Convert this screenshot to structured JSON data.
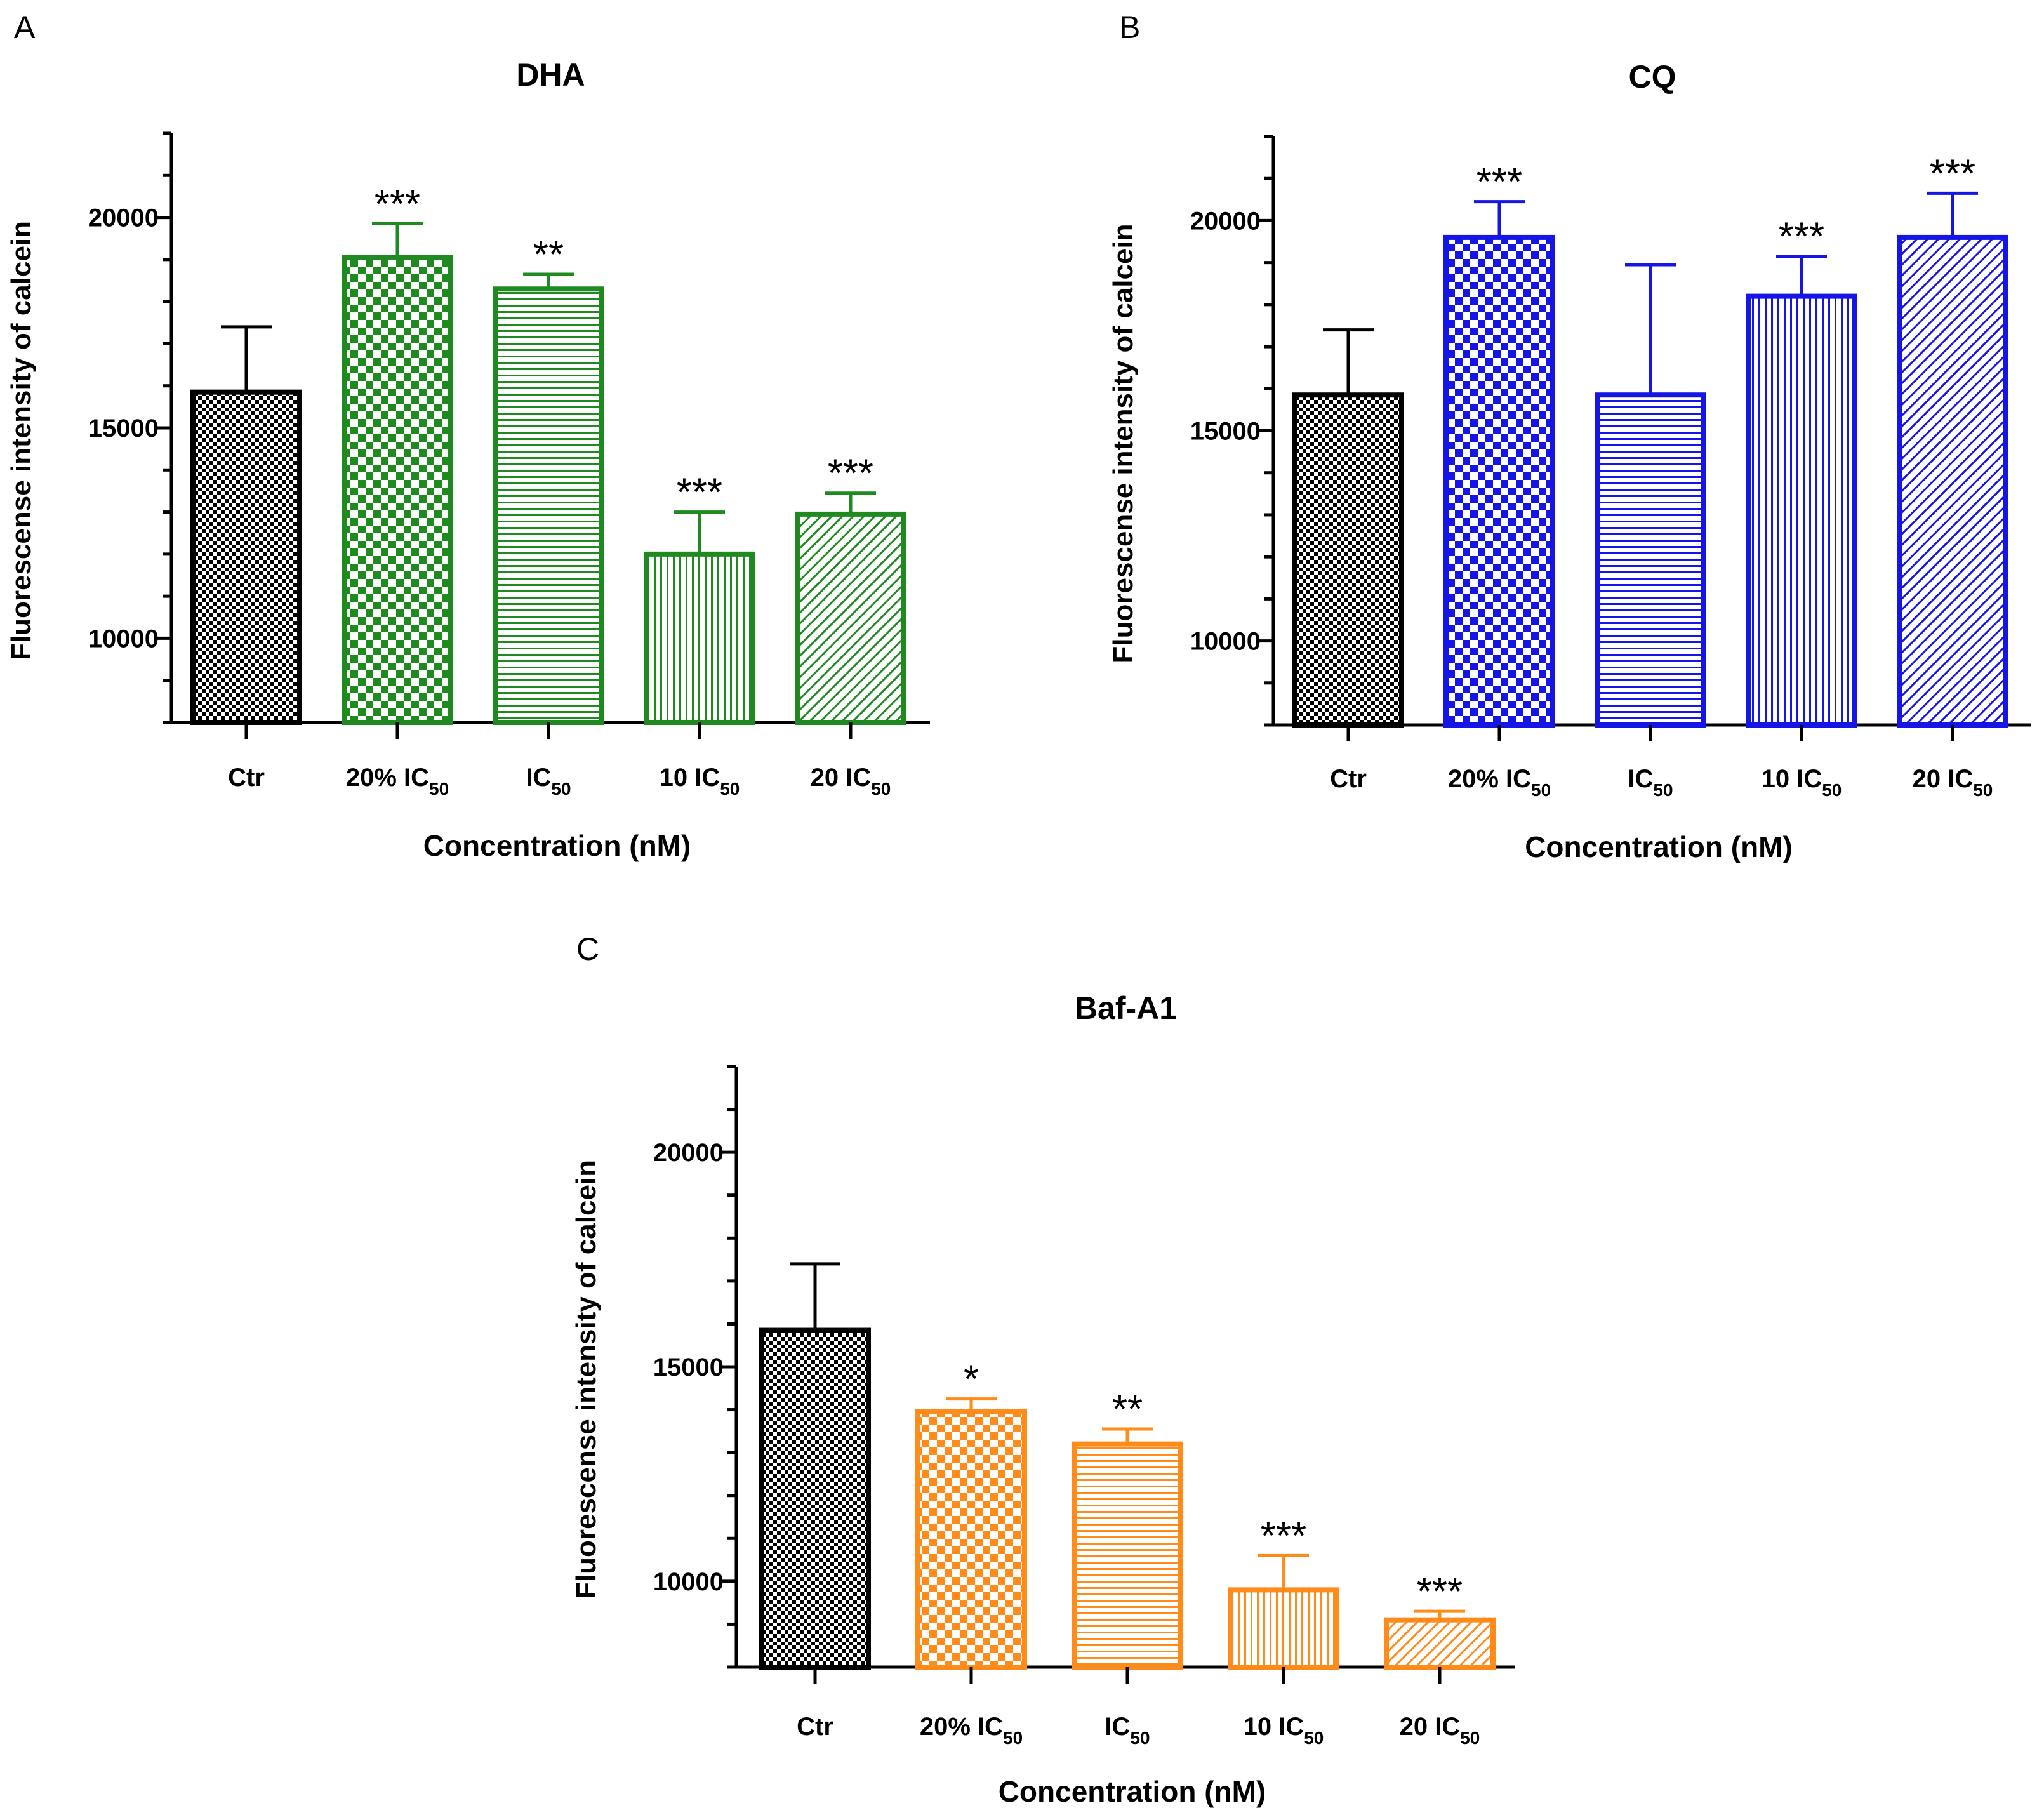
{
  "colors": {
    "control": "#000000",
    "DHA": "#1f8a1f",
    "CQ": "#1515e6",
    "Baf-A1": "#ff8c1a",
    "axis": "#000000",
    "background": "#ffffff"
  },
  "chart_data": [
    {
      "panel": "A",
      "type": "bar",
      "title": "DHA",
      "xlabel": "Concentration (nM)",
      "ylabel": "Fluorescense intensity of calcein",
      "ylim": [
        8000,
        22000
      ],
      "yticks": [
        10000,
        15000,
        20000
      ],
      "grid": false,
      "categories": [
        {
          "base": "Ctr",
          "sub": ""
        },
        {
          "base": "20% IC",
          "sub": "50"
        },
        {
          "base": "IC",
          "sub": "50"
        },
        {
          "base": "10 IC",
          "sub": "50"
        },
        {
          "base": "20 IC",
          "sub": "50"
        }
      ],
      "values": [
        15850,
        19050,
        18300,
        12000,
        12950
      ],
      "errors": [
        1550,
        800,
        350,
        1000,
        500
      ],
      "significance": [
        "",
        "***",
        "**",
        "***",
        "***"
      ],
      "patterns": [
        "checker",
        "checker-lg",
        "hlines",
        "vlines",
        "diag"
      ]
    },
    {
      "panel": "B",
      "type": "bar",
      "title": "CQ",
      "xlabel": "Concentration (nM)",
      "ylabel": "Fluorescense intensity of calcein",
      "ylim": [
        8000,
        22000
      ],
      "yticks": [
        10000,
        15000,
        20000
      ],
      "grid": false,
      "categories": [
        {
          "base": "Ctr",
          "sub": ""
        },
        {
          "base": "20% IC",
          "sub": "50"
        },
        {
          "base": "IC",
          "sub": "50"
        },
        {
          "base": "10 IC",
          "sub": "50"
        },
        {
          "base": "20 IC",
          "sub": "50"
        }
      ],
      "values": [
        15850,
        19600,
        15850,
        18200,
        19600
      ],
      "errors": [
        1550,
        850,
        3100,
        950,
        1050
      ],
      "significance": [
        "",
        "***",
        "",
        "***",
        "***"
      ],
      "patterns": [
        "checker",
        "checker-lg",
        "hlines",
        "vlines",
        "diag"
      ]
    },
    {
      "panel": "C",
      "type": "bar",
      "title": "Baf-A1",
      "xlabel": "Concentration (nM)",
      "ylabel": "Fluorescense intensity of calcein",
      "ylim": [
        8000,
        22000
      ],
      "yticks": [
        10000,
        15000,
        20000
      ],
      "grid": false,
      "categories": [
        {
          "base": "Ctr",
          "sub": ""
        },
        {
          "base": "20% IC",
          "sub": "50"
        },
        {
          "base": "IC",
          "sub": "50"
        },
        {
          "base": "10 IC",
          "sub": "50"
        },
        {
          "base": "20 IC",
          "sub": "50"
        }
      ],
      "values": [
        15850,
        13950,
        13200,
        9800,
        9100
      ],
      "errors": [
        1550,
        300,
        350,
        800,
        200
      ],
      "significance": [
        "",
        "*",
        "**",
        "***",
        "***"
      ],
      "patterns": [
        "checker",
        "checker-lg",
        "hlines",
        "vlines",
        "diag"
      ]
    }
  ]
}
